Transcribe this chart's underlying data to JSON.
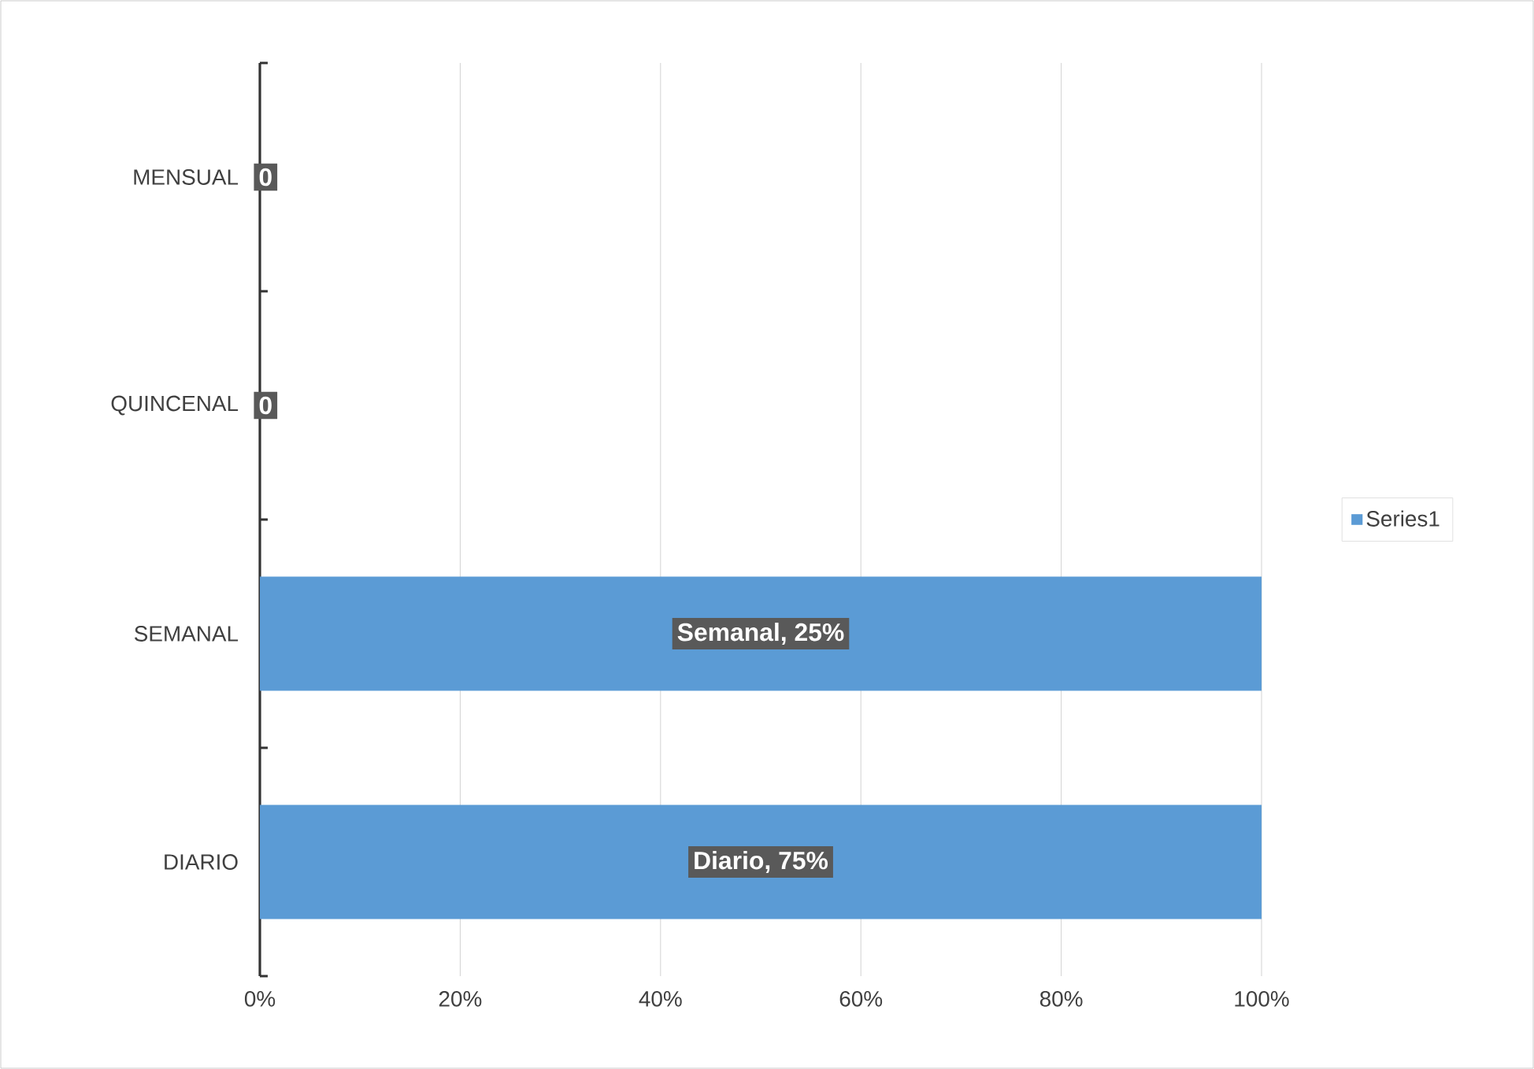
{
  "chart_data": {
    "type": "bar",
    "orientation": "horizontal",
    "categories": [
      "MENSUAL",
      "QUINCENAL",
      "SEMANAL",
      "DIARIO"
    ],
    "series": [
      {
        "name": "Series1",
        "color": "#5b9bd5",
        "values": [
          0,
          0,
          100,
          100
        ],
        "value_labels": [
          "0",
          "0",
          null,
          null
        ]
      }
    ],
    "annotations": [
      "Semanal, 25%",
      "Diario, 75%"
    ],
    "xlim": [
      0,
      100
    ],
    "xticks": [
      {
        "value": 0,
        "label": "0%"
      },
      {
        "value": 20,
        "label": "20%"
      },
      {
        "value": 40,
        "label": "40%"
      },
      {
        "value": 60,
        "label": "60%"
      },
      {
        "value": 80,
        "label": "80%"
      },
      {
        "value": 100,
        "label": "100%"
      }
    ],
    "grid": "x",
    "legend": "right"
  }
}
